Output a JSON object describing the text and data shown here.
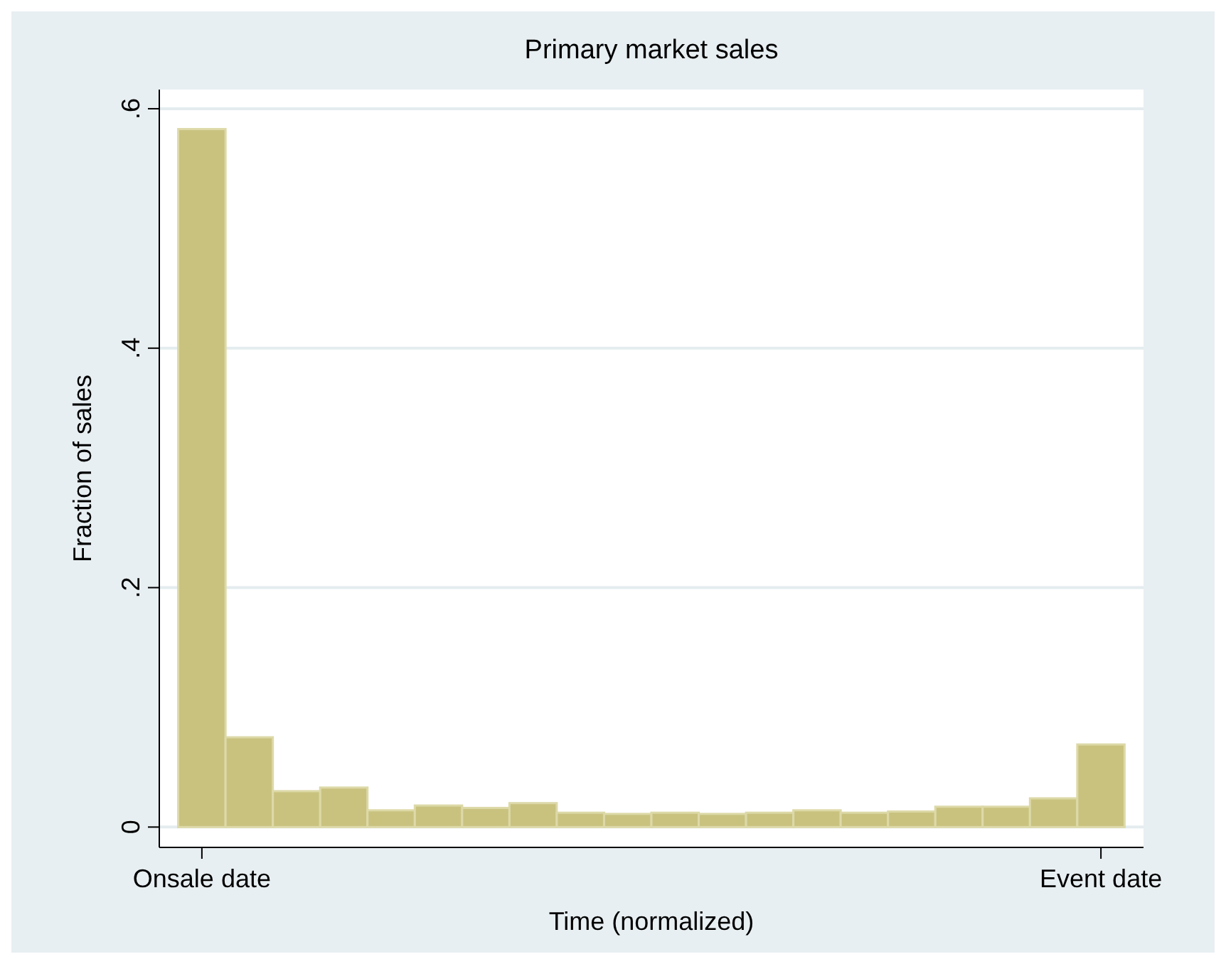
{
  "chart_data": {
    "type": "bar",
    "title": "Primary market sales",
    "xlabel": "Time (normalized)",
    "ylabel": "Fraction of sales",
    "categories": [
      "Onsale date",
      null,
      null,
      null,
      null,
      null,
      null,
      null,
      null,
      null,
      null,
      null,
      null,
      null,
      null,
      null,
      null,
      null,
      null,
      "Event date"
    ],
    "values": [
      0.583,
      0.075,
      0.03,
      0.033,
      0.014,
      0.018,
      0.016,
      0.02,
      0.012,
      0.011,
      0.012,
      0.011,
      0.012,
      0.014,
      0.012,
      0.013,
      0.017,
      0.017,
      0.024,
      0.069
    ],
    "color": "#c9c27f",
    "ylim": [
      -0.017,
      0.616
    ],
    "yticks": [
      {
        "value": 0,
        "label": "0"
      },
      {
        "value": 0.2,
        "label": ".2"
      },
      {
        "value": 0.4,
        "label": ".4"
      },
      {
        "value": 0.6,
        "label": ".6"
      }
    ],
    "grid": "y"
  }
}
